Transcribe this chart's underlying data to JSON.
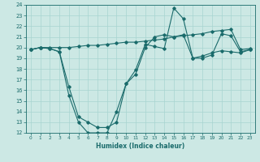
{
  "xlabel": "Humidex (Indice chaleur)",
  "ylabel": "",
  "xlim": [
    -0.5,
    23.5
  ],
  "ylim": [
    12,
    24
  ],
  "yticks": [
    12,
    13,
    14,
    15,
    16,
    17,
    18,
    19,
    20,
    21,
    22,
    23,
    24
  ],
  "xticks": [
    0,
    1,
    2,
    3,
    4,
    5,
    6,
    7,
    8,
    9,
    10,
    11,
    12,
    13,
    14,
    15,
    16,
    17,
    18,
    19,
    20,
    21,
    22,
    23
  ],
  "bg_color": "#cce8e4",
  "line_color": "#1a6b6b",
  "grid_color": "#a8d4d0",
  "series1_x": [
    0,
    1,
    2,
    3,
    4,
    5,
    6,
    7,
    8,
    9,
    10,
    11,
    12,
    13,
    14,
    15,
    16,
    17,
    18,
    19,
    20,
    21,
    22,
    23
  ],
  "series1_y": [
    19.8,
    20.0,
    19.9,
    19.6,
    15.5,
    13.0,
    12.0,
    12.0,
    12.0,
    14.0,
    16.6,
    17.9,
    20.3,
    20.1,
    19.9,
    23.7,
    22.7,
    19.0,
    19.0,
    19.3,
    21.3,
    21.1,
    19.6,
    19.8
  ],
  "series2_x": [
    0,
    1,
    2,
    3,
    4,
    5,
    6,
    7,
    8,
    9,
    10,
    11,
    12,
    13,
    14,
    15,
    16,
    17,
    18,
    19,
    20,
    21,
    22,
    23
  ],
  "series2_y": [
    19.8,
    20.0,
    20.0,
    20.0,
    20.0,
    20.1,
    20.2,
    20.2,
    20.3,
    20.4,
    20.5,
    20.5,
    20.6,
    20.7,
    20.8,
    21.0,
    21.1,
    21.2,
    21.3,
    21.5,
    21.6,
    21.7,
    19.8,
    19.9
  ],
  "series3_x": [
    0,
    1,
    2,
    3,
    4,
    5,
    6,
    7,
    8,
    9,
    10,
    11,
    12,
    13,
    14,
    15,
    16,
    17,
    18,
    19,
    20,
    21,
    22,
    23
  ],
  "series3_y": [
    19.8,
    20.0,
    19.9,
    19.6,
    16.3,
    13.5,
    13.0,
    12.5,
    12.5,
    13.0,
    16.6,
    17.5,
    20.0,
    21.0,
    21.2,
    21.0,
    21.2,
    19.0,
    19.2,
    19.5,
    19.7,
    19.6,
    19.5,
    19.8
  ]
}
